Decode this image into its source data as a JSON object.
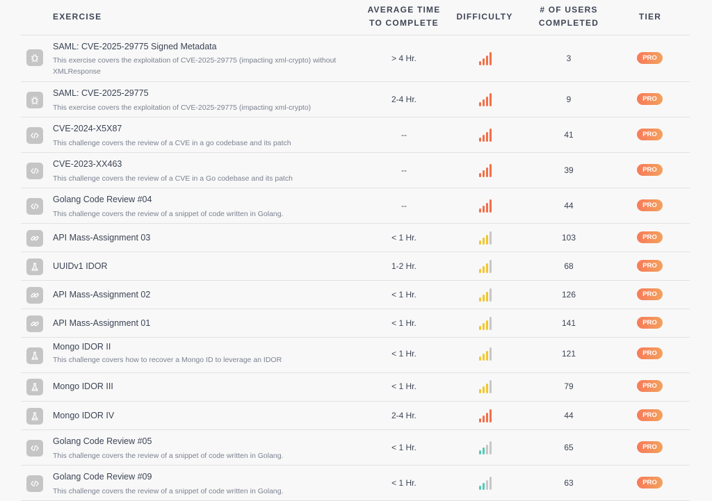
{
  "header": {
    "exercise": "EXERCISE",
    "time_line1": "AVERAGE TIME",
    "time_line2": "TO COMPLETE",
    "difficulty": "DIFFICULTY",
    "users_line1": "# OF USERS",
    "users_line2": "COMPLETED",
    "tier": "TIER"
  },
  "colors": {
    "hard": "#f36f49",
    "medium": "#f3c52e",
    "easy": "#53c9b5",
    "inactive": "#c7c7c7"
  },
  "rows": [
    {
      "icon": "bug-icon",
      "title": "SAML: CVE-2025-29775 Signed Metadata",
      "desc": "This exercise covers the exploitation of CVE-2025-29775 (impacting xml-crypto) without XMLResponse",
      "time": "> 4 Hr.",
      "difficulty": "hard",
      "level": 4,
      "users": "3",
      "tier": "PRO"
    },
    {
      "icon": "bug-icon",
      "title": "SAML: CVE-2025-29775",
      "desc": "This exercise covers the exploitation of CVE-2025-29775 (impacting xml-crypto)",
      "time": "2-4 Hr.",
      "difficulty": "hard",
      "level": 4,
      "users": "9",
      "tier": "PRO"
    },
    {
      "icon": "code-icon",
      "title": "CVE-2024-X5X87",
      "desc": "This challenge covers the review of a CVE in a go codebase and its patch",
      "time": "--",
      "difficulty": "hard",
      "level": 4,
      "users": "41",
      "tier": "PRO"
    },
    {
      "icon": "code-icon",
      "title": "CVE-2023-XX463",
      "desc": "This challenge covers the review of a CVE in a Go codebase and its patch",
      "time": "--",
      "difficulty": "hard",
      "level": 4,
      "users": "39",
      "tier": "PRO"
    },
    {
      "icon": "code-icon",
      "title": "Golang Code Review #04",
      "desc": "This challenge covers the review of a snippet of code written in Golang.",
      "time": "--",
      "difficulty": "hard",
      "level": 4,
      "users": "44",
      "tier": "PRO"
    },
    {
      "icon": "link-icon",
      "title": "API Mass-Assignment 03",
      "desc": "",
      "time": "< 1 Hr.",
      "difficulty": "medium",
      "level": 3,
      "users": "103",
      "tier": "PRO"
    },
    {
      "icon": "flask-icon",
      "title": "UUIDv1 IDOR",
      "desc": "",
      "time": "1-2 Hr.",
      "difficulty": "medium",
      "level": 3,
      "users": "68",
      "tier": "PRO"
    },
    {
      "icon": "link-icon",
      "title": "API Mass-Assignment 02",
      "desc": "",
      "time": "< 1 Hr.",
      "difficulty": "medium",
      "level": 3,
      "users": "126",
      "tier": "PRO"
    },
    {
      "icon": "link-icon",
      "title": "API Mass-Assignment 01",
      "desc": "",
      "time": "< 1 Hr.",
      "difficulty": "medium",
      "level": 3,
      "users": "141",
      "tier": "PRO"
    },
    {
      "icon": "flask-icon",
      "title": "Mongo IDOR II",
      "desc": "This challenge covers how to recover a Mongo ID to leverage an IDOR",
      "time": "< 1 Hr.",
      "difficulty": "medium",
      "level": 3,
      "users": "121",
      "tier": "PRO"
    },
    {
      "icon": "flask-icon",
      "title": "Mongo IDOR III",
      "desc": "",
      "time": "< 1 Hr.",
      "difficulty": "medium",
      "level": 3,
      "users": "79",
      "tier": "PRO"
    },
    {
      "icon": "flask-icon",
      "title": "Mongo IDOR IV",
      "desc": "",
      "time": "2-4 Hr.",
      "difficulty": "hard",
      "level": 4,
      "users": "44",
      "tier": "PRO"
    },
    {
      "icon": "code-icon",
      "title": "Golang Code Review #05",
      "desc": "This challenge covers the review of a snippet of code written in Golang.",
      "time": "< 1 Hr.",
      "difficulty": "easy",
      "level": 2,
      "users": "65",
      "tier": "PRO"
    },
    {
      "icon": "code-icon",
      "title": "Golang Code Review #09",
      "desc": "This challenge covers the review of a snippet of code written in Golang.",
      "time": "< 1 Hr.",
      "difficulty": "easy",
      "level": 2,
      "users": "63",
      "tier": "PRO"
    }
  ]
}
